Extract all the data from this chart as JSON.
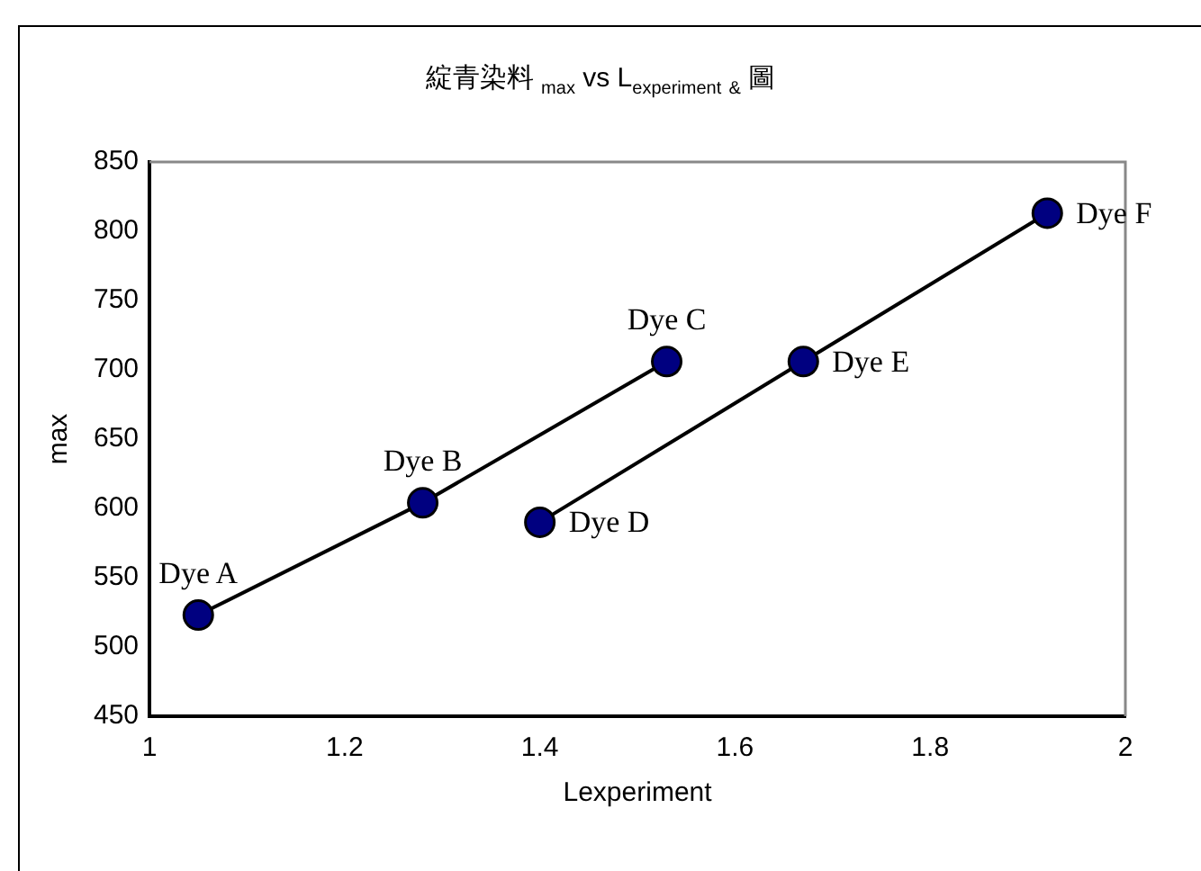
{
  "chart_data": {
    "type": "line",
    "title": "綻青染料 $_{max}$ vs L$_{experiment}$ $_{&}$ 圖",
    "xlabel": "Lexperiment",
    "ylabel": "max",
    "series": [
      {
        "color": "#000080",
        "x": [
          1.05,
          1.28,
          1.53
        ],
        "values": [
          523,
          604,
          706
        ]
      },
      {
        "color": "#000080",
        "x": [
          1.4,
          1.67,
          1.92
        ],
        "values": [
          590,
          706,
          813
        ]
      }
    ],
    "xlim": [
      1,
      2
    ],
    "xticks": [
      1,
      1.2,
      1.4,
      1.6,
      1.8,
      2
    ],
    "ylim": [
      450,
      850
    ],
    "yticks": [
      450,
      500,
      550,
      600,
      650,
      700,
      750,
      800,
      850
    ],
    "grid": false,
    "legend": false,
    "marker": "circle",
    "line_style": "solid",
    "annotations": [
      {
        "text": "Dye A",
        "x": 1.05,
        "y": 523
      },
      {
        "text": "Dye B",
        "x": 1.28,
        "y": 604
      },
      {
        "text": "Dye C",
        "x": 1.53,
        "y": 706
      },
      {
        "text": "Dye D",
        "x": 1.4,
        "y": 590
      },
      {
        "text": "Dye E",
        "x": 1.67,
        "y": 706
      },
      {
        "text": "Dye F",
        "x": 1.92,
        "y": 813
      }
    ]
  }
}
